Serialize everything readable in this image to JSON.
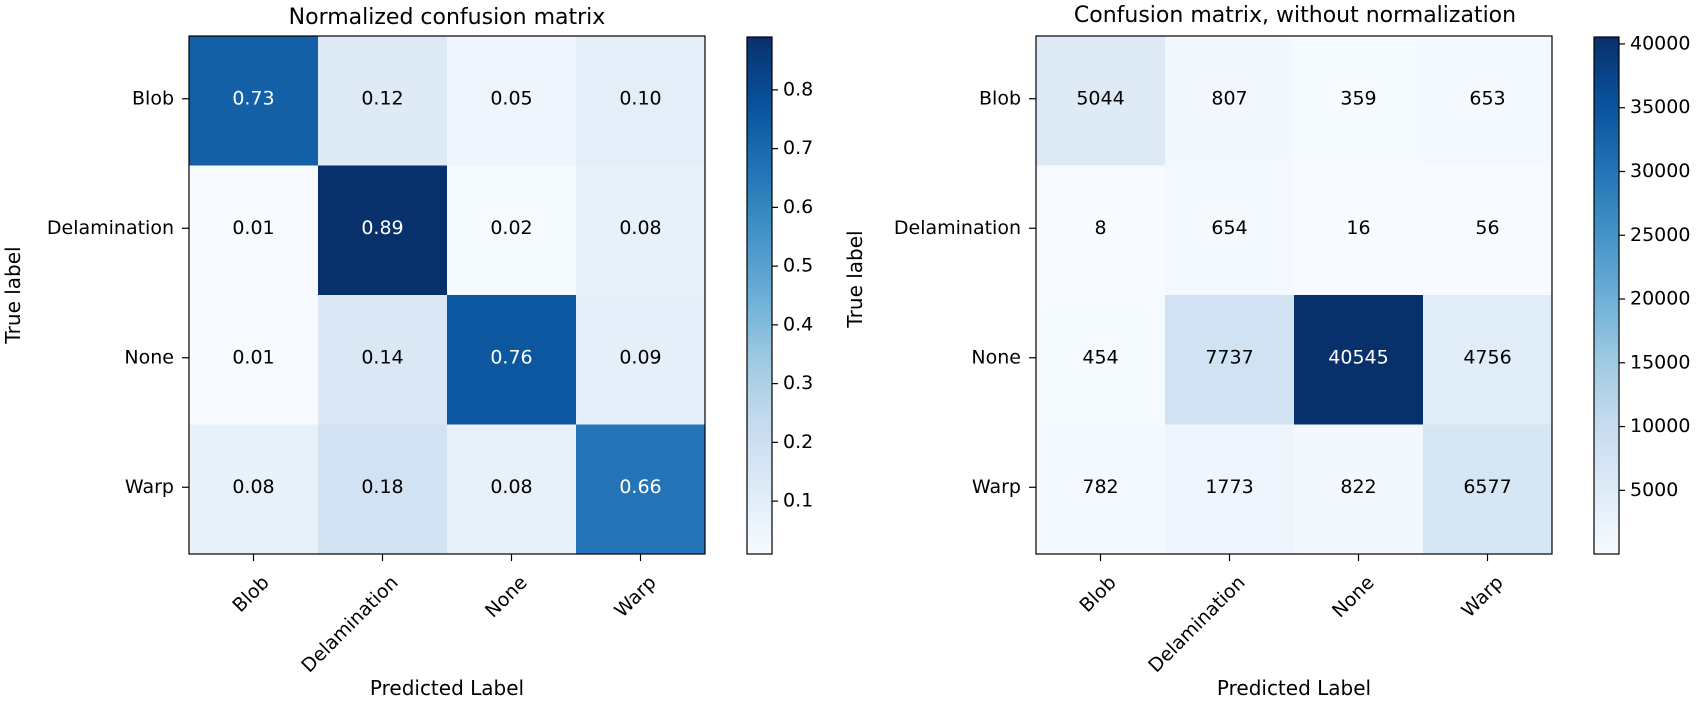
{
  "chart_data": [
    {
      "type": "heatmap",
      "title": "Normalized confusion matrix",
      "xlabel": "Predicted Label",
      "ylabel": "True label",
      "x_categories": [
        "Blob",
        "Delamination",
        "None",
        "Warp"
      ],
      "y_categories": [
        "Blob",
        "Delamination",
        "None",
        "Warp"
      ],
      "value_labels": [
        [
          "0.73",
          "0.12",
          "0.05",
          "0.10"
        ],
        [
          "0.01",
          "0.89",
          "0.02",
          "0.08"
        ],
        [
          "0.01",
          "0.14",
          "0.76",
          "0.09"
        ],
        [
          "0.08",
          "0.18",
          "0.08",
          "0.66"
        ]
      ],
      "values": [
        [
          0.73,
          0.12,
          0.05,
          0.1
        ],
        [
          0.01,
          0.89,
          0.02,
          0.08
        ],
        [
          0.01,
          0.14,
          0.76,
          0.09
        ],
        [
          0.08,
          0.18,
          0.08,
          0.66
        ]
      ],
      "color_range": [
        0.01,
        0.89
      ],
      "colormap": "Blues",
      "colorbar_ticks": [
        "0.1",
        "0.2",
        "0.3",
        "0.4",
        "0.5",
        "0.6",
        "0.7",
        "0.8"
      ],
      "colorbar_tick_values": [
        0.1,
        0.2,
        0.3,
        0.4,
        0.5,
        0.6,
        0.7,
        0.8
      ]
    },
    {
      "type": "heatmap",
      "title": "Confusion matrix, without normalization",
      "xlabel": "Predicted Label",
      "ylabel": "True label",
      "x_categories": [
        "Blob",
        "Delamination",
        "None",
        "Warp"
      ],
      "y_categories": [
        "Blob",
        "Delamination",
        "None",
        "Warp"
      ],
      "value_labels": [
        [
          "5044",
          "807",
          "359",
          "653"
        ],
        [
          "8",
          "654",
          "16",
          "56"
        ],
        [
          "454",
          "7737",
          "40545",
          "4756"
        ],
        [
          "782",
          "1773",
          "822",
          "6577"
        ]
      ],
      "values": [
        [
          5044,
          807,
          359,
          653
        ],
        [
          8,
          654,
          16,
          56
        ],
        [
          454,
          7737,
          40545,
          4756
        ],
        [
          782,
          1773,
          822,
          6577
        ]
      ],
      "color_range": [
        8,
        40545
      ],
      "colormap": "Blues",
      "colorbar_ticks": [
        "5000",
        "10000",
        "15000",
        "20000",
        "25000",
        "30000",
        "35000",
        "40000"
      ],
      "colorbar_tick_values": [
        5000,
        10000,
        15000,
        20000,
        25000,
        30000,
        35000,
        40000
      ]
    }
  ],
  "colors": {
    "blues": [
      "#f7fbff",
      "#deebf7",
      "#c6dbef",
      "#9ecae1",
      "#6baed6",
      "#4292c6",
      "#2171b5",
      "#08519c",
      "#08306b"
    ]
  }
}
